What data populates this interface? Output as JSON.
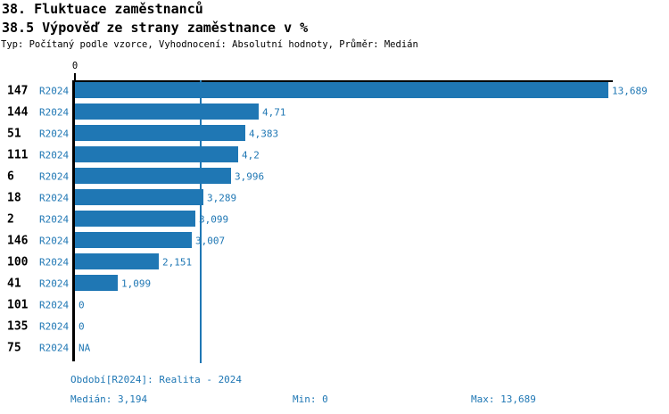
{
  "header": {
    "title1": "38. Fluktuace zaměstnanců",
    "title2": "38.5 Výpověď ze strany zaměstnance v %",
    "meta": "Typ: Počítaný podle vzorce, Vyhodnocení: Absolutní hodnoty, Průměr: Medián"
  },
  "colors": {
    "bar": "#1f77b4",
    "label_blue": "#1f77b4",
    "axis_black": "#000000",
    "background": "#ffffff"
  },
  "chart_data": {
    "type": "bar",
    "orientation": "horizontal",
    "title": "38.5 Výpověď ze strany zaměstnance v %",
    "xlabel": "",
    "ylabel": "",
    "xlim": [
      0,
      13.689
    ],
    "x_axis": {
      "position": "top",
      "tick_labels": [
        "0"
      ]
    },
    "grid": false,
    "legend": false,
    "series_label": "R2024",
    "categories": [
      "147",
      "144",
      "51",
      "111",
      "6",
      "18",
      "2",
      "146",
      "100",
      "41",
      "101",
      "135",
      "75"
    ],
    "values": [
      13.689,
      4.71,
      4.383,
      4.2,
      3.996,
      3.289,
      3.099,
      3.007,
      2.151,
      1.099,
      0,
      0,
      null
    ],
    "value_labels": [
      "13,689",
      "4,71",
      "4,383",
      "4,2",
      "3,996",
      "3,289",
      "3,099",
      "3,007",
      "2,151",
      "1,099",
      "0",
      "0",
      "NA"
    ],
    "median_value": 3.194,
    "annotations": "vertical median reference line at 3,194"
  },
  "footer": {
    "period": "Období[R2024]: Realita - 2024",
    "median": "Medián: 3,194",
    "min": "Min: 0",
    "max": "Max: 13,689"
  }
}
